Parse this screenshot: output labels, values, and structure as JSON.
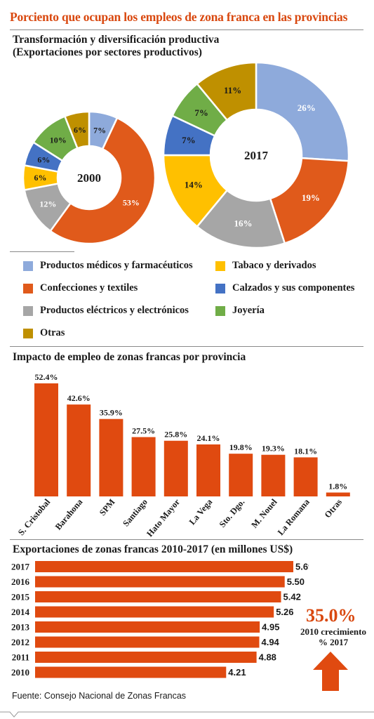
{
  "title": "Porciento que ocupan los empleos de zona franca en las provincias",
  "section1": {
    "title_line1": "Transformación y diversificación productiva",
    "title_line2": "(Exportaciones por sectores productivos)"
  },
  "section2": {
    "title": "Impacto de empleo de zonas francas por provincia"
  },
  "section3": {
    "title": "Exportaciones de zonas francas 2010-2017 (en millones US$)"
  },
  "growth": {
    "value": "35.0%",
    "line1": "2010 crecimiento",
    "line2": "% 2017"
  },
  "source": "Fuente: Consejo Nacional de Zonas Francas",
  "colors": {
    "medicos": "#8eaadb",
    "confecciones": "#e05a1b",
    "electricos": "#a6a6a6",
    "tabaco": "#ffc000",
    "calzados": "#4472c4",
    "joyeria": "#70ad47",
    "otras": "#bf9000",
    "accent": "#d9480f",
    "bar": "#e04a10"
  },
  "legend": [
    {
      "label": "Productos médicos y farmacéuticos",
      "color": "#8eaadb"
    },
    {
      "label": "Tabaco y derivados",
      "color": "#ffc000"
    },
    {
      "label": "Confecciones y textiles",
      "color": "#e05a1b"
    },
    {
      "label": "Calzados y sus componentes",
      "color": "#4472c4"
    },
    {
      "label": "Productos eléctricos y electrónicos",
      "color": "#a6a6a6"
    },
    {
      "label": "Joyería",
      "color": "#70ad47"
    },
    {
      "label": "Otras",
      "color": "#bf9000"
    }
  ],
  "chart_data": [
    {
      "type": "pie",
      "title": "2000",
      "slices": [
        {
          "name": "Productos médicos y farmacéuticos",
          "value": 7,
          "label": "7%",
          "color": "#8eaadb"
        },
        {
          "name": "Confecciones y textiles",
          "value": 53,
          "label": "53%",
          "color": "#e05a1b"
        },
        {
          "name": "Productos eléctricos y electrónicos",
          "value": 12,
          "label": "12%",
          "color": "#a6a6a6"
        },
        {
          "name": "Tabaco y derivados",
          "value": 6,
          "label": "6%",
          "color": "#ffc000"
        },
        {
          "name": "Calzados y sus componentes",
          "value": 6,
          "label": "6%",
          "color": "#4472c4"
        },
        {
          "name": "Joyería",
          "value": 10,
          "label": "10%",
          "color": "#70ad47"
        },
        {
          "name": "Otras",
          "value": 6,
          "label": "6%",
          "color": "#bf9000"
        }
      ]
    },
    {
      "type": "pie",
      "title": "2017",
      "slices": [
        {
          "name": "Productos médicos y farmacéuticos",
          "value": 26,
          "label": "26%",
          "color": "#8eaadb"
        },
        {
          "name": "Confecciones y textiles",
          "value": 19,
          "label": "19%",
          "color": "#e05a1b"
        },
        {
          "name": "Productos eléctricos y electrónicos",
          "value": 16,
          "label": "16%",
          "color": "#a6a6a6"
        },
        {
          "name": "Tabaco y derivados",
          "value": 14,
          "label": "14%",
          "color": "#ffc000"
        },
        {
          "name": "Calzados y sus componentes",
          "value": 7,
          "label": "7%",
          "color": "#4472c4"
        },
        {
          "name": "Joyería",
          "value": 7,
          "label": "7%",
          "color": "#70ad47"
        },
        {
          "name": "Otras",
          "value": 11,
          "label": "11%",
          "color": "#bf9000"
        }
      ]
    },
    {
      "type": "bar",
      "title": "Impacto de empleo de zonas francas por provincia",
      "categories": [
        "S. Cristobal",
        "Barahona",
        "SPM",
        "Santiago",
        "Hato Mayor",
        "La Vega",
        "Sto. Dgo.",
        "M. Nouel",
        "La Romana",
        "Otras"
      ],
      "values": [
        52.4,
        42.6,
        35.9,
        27.5,
        25.8,
        24.1,
        19.8,
        19.3,
        18.1,
        1.8
      ],
      "value_labels": [
        "52.4%",
        "42.6%",
        "35.9%",
        "27.5%",
        "25.8%",
        "24.1%",
        "19.8%",
        "19.3%",
        "18.1%",
        "1.8%"
      ],
      "ylim": [
        0,
        52.4
      ]
    },
    {
      "type": "bar",
      "orientation": "horizontal",
      "title": "Exportaciones de zonas francas 2010-2017 (en millones US$)",
      "categories": [
        "2017",
        "2016",
        "2015",
        "2014",
        "2013",
        "2012",
        "2011",
        "2010"
      ],
      "values": [
        5.69,
        5.5,
        5.42,
        5.26,
        4.95,
        4.94,
        4.88,
        4.21
      ],
      "value_labels": [
        "5.69",
        "5.50",
        "5.42",
        "5.26",
        "4.95",
        "4.94",
        "4.88",
        "4.21"
      ],
      "xlim": [
        0,
        5.69
      ]
    }
  ]
}
